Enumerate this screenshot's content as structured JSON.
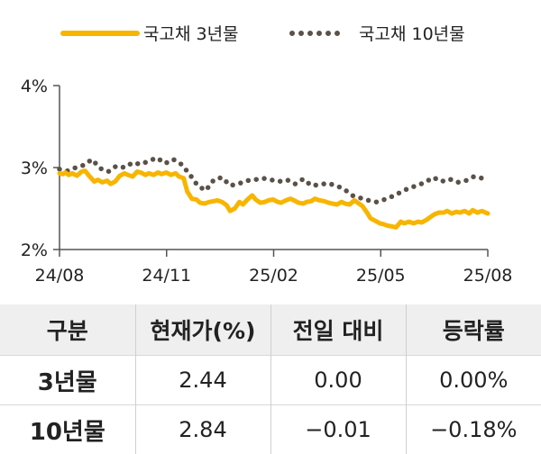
{
  "legend": {
    "series_3y": "국고채 3년물",
    "series_10y": "국고채 10년물"
  },
  "colors": {
    "series_3y": "#f7b500",
    "series_10y": "#5a5148",
    "axis": "#555555",
    "header_bg": "#efefef"
  },
  "chart_data": {
    "type": "line",
    "x_ticks": [
      "24/08",
      "24/11",
      "25/02",
      "25/05",
      "25/08"
    ],
    "y_ticks": [
      "2%",
      "3%",
      "4%"
    ],
    "ylim": [
      2,
      4
    ],
    "grid": false,
    "legend_position": "top",
    "series": [
      {
        "name": "국고채 3년물",
        "style": "solid",
        "x": [
          0,
          3,
          5,
          8,
          11,
          15,
          19,
          22,
          26,
          30,
          33,
          37,
          41,
          44,
          48,
          52,
          56,
          59,
          63,
          67,
          70,
          74,
          77,
          81,
          85,
          88,
          92,
          96,
          100,
          103,
          107,
          110,
          114,
          118,
          121,
          125,
          129,
          133,
          136,
          140,
          144,
          147,
          151,
          155,
          158,
          162,
          166,
          169,
          173,
          177,
          180,
          184,
          188,
          191,
          195,
          199,
          202,
          206,
          210,
          213,
          217,
          220,
          224,
          228,
          232,
          235,
          239,
          243,
          246,
          250,
          254,
          257,
          261,
          265,
          268,
          272,
          276,
          279,
          283,
          287,
          290,
          294,
          297,
          301,
          305,
          309,
          312,
          316,
          320,
          323,
          327,
          331,
          334,
          338,
          342,
          345,
          349,
          353,
          356,
          360,
          364,
          367,
          369
        ],
        "values": [
          2.93,
          2.92,
          2.94,
          2.91,
          2.93,
          2.9,
          2.95,
          2.96,
          2.89,
          2.83,
          2.85,
          2.82,
          2.84,
          2.8,
          2.83,
          2.9,
          2.93,
          2.91,
          2.89,
          2.95,
          2.94,
          2.91,
          2.93,
          2.91,
          2.94,
          2.92,
          2.94,
          2.91,
          2.93,
          2.89,
          2.87,
          2.71,
          2.62,
          2.61,
          2.57,
          2.56,
          2.58,
          2.59,
          2.6,
          2.58,
          2.54,
          2.47,
          2.5,
          2.58,
          2.55,
          2.61,
          2.66,
          2.61,
          2.57,
          2.58,
          2.6,
          2.61,
          2.58,
          2.57,
          2.6,
          2.62,
          2.6,
          2.57,
          2.56,
          2.58,
          2.59,
          2.62,
          2.6,
          2.59,
          2.57,
          2.56,
          2.55,
          2.58,
          2.56,
          2.55,
          2.6,
          2.57,
          2.53,
          2.45,
          2.38,
          2.35,
          2.32,
          2.31,
          2.29,
          2.28,
          2.27,
          2.34,
          2.32,
          2.34,
          2.32,
          2.34,
          2.33,
          2.36,
          2.4,
          2.43,
          2.45,
          2.45,
          2.47,
          2.44,
          2.46,
          2.45,
          2.47,
          2.44,
          2.48,
          2.45,
          2.47,
          2.45,
          2.44
        ]
      },
      {
        "name": "국고채 10년물",
        "style": "dotted",
        "x": [
          0,
          7,
          14,
          21,
          28,
          35,
          42,
          49,
          56,
          63,
          70,
          77,
          84,
          91,
          98,
          105,
          112,
          119,
          126,
          133,
          140,
          147,
          154,
          161,
          168,
          175,
          182,
          189,
          196,
          203,
          210,
          217,
          224,
          231,
          238,
          245,
          252,
          259,
          266,
          273,
          280,
          287,
          294,
          301,
          308,
          315,
          322,
          329,
          336,
          343,
          350,
          357,
          364,
          369
        ],
        "values": [
          2.98,
          2.96,
          3.0,
          3.03,
          3.1,
          2.99,
          2.95,
          3.02,
          3.0,
          3.06,
          3.04,
          3.08,
          3.12,
          3.05,
          3.1,
          3.04,
          2.92,
          2.78,
          2.72,
          2.85,
          2.88,
          2.78,
          2.8,
          2.84,
          2.85,
          2.87,
          2.85,
          2.83,
          2.85,
          2.8,
          2.86,
          2.78,
          2.79,
          2.81,
          2.78,
          2.74,
          2.66,
          2.63,
          2.6,
          2.58,
          2.61,
          2.65,
          2.7,
          2.75,
          2.78,
          2.82,
          2.88,
          2.83,
          2.86,
          2.82,
          2.84,
          2.89,
          2.87,
          2.84
        ]
      }
    ]
  },
  "table": {
    "headers": [
      "구분",
      "현재가(%)",
      "전일 대비",
      "등락률"
    ],
    "rows": [
      [
        "3년물",
        "2.44",
        "0.00",
        "0.00%"
      ],
      [
        "10년물",
        "2.84",
        "−0.01",
        "−0.18%"
      ]
    ]
  }
}
